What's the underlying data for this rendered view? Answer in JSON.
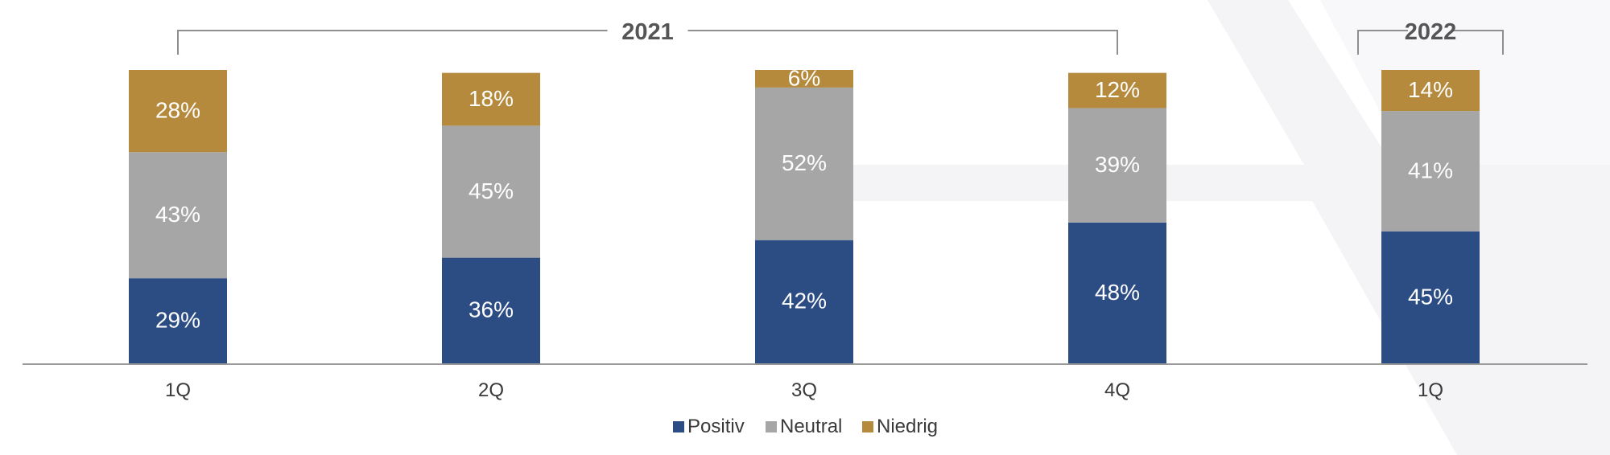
{
  "chart_data": {
    "type": "bar",
    "stacked": true,
    "categories": [
      "1Q",
      "2Q",
      "3Q",
      "4Q",
      "1Q"
    ],
    "series": [
      {
        "name": "Positiv",
        "color": "#2c4c84",
        "values": [
          29,
          36,
          42,
          48,
          45
        ]
      },
      {
        "name": "Neutral",
        "color": "#a6a6a6",
        "values": [
          43,
          45,
          52,
          39,
          41
        ]
      },
      {
        "name": "Niedrig",
        "color": "#b58a3c",
        "values": [
          28,
          18,
          6,
          12,
          14
        ]
      }
    ],
    "unit": "%",
    "year_groups": [
      {
        "label": "2021",
        "from": 0,
        "to": 3
      },
      {
        "label": "2022",
        "from": 4,
        "to": 4
      }
    ],
    "ylim": [
      0,
      100
    ],
    "grid": false,
    "legend_position": "bottom-center",
    "title": "",
    "xlabel": "",
    "ylabel": ""
  }
}
